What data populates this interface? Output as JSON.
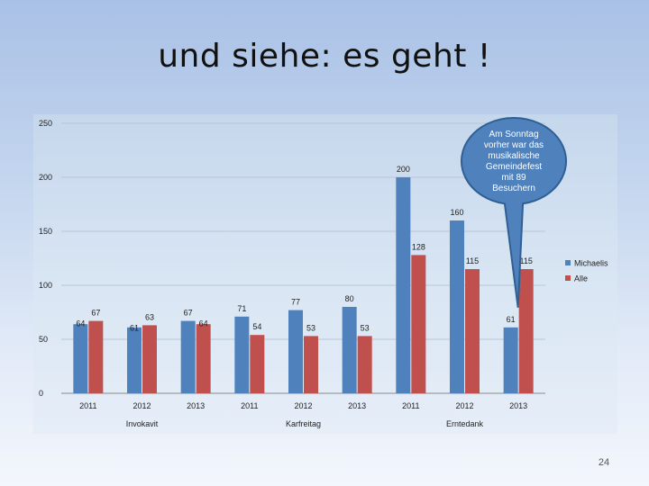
{
  "slide": {
    "title": "und siehe: es geht !",
    "page_number": "24"
  },
  "chart_data": {
    "type": "bar",
    "ylim": [
      0,
      250
    ],
    "yticks": [
      0,
      50,
      100,
      150,
      200,
      250
    ],
    "groups": [
      "Invokavit",
      "Karfreitag",
      "Erntedank"
    ],
    "categories": [
      "2011",
      "2012",
      "2013",
      "2011",
      "2012",
      "2013",
      "2011",
      "2012",
      "2013"
    ],
    "category_groups": [
      0,
      0,
      0,
      1,
      1,
      1,
      2,
      2,
      2
    ],
    "series": [
      {
        "name": "Michaelis",
        "color": "#4f81bd",
        "values": [
          64,
          61,
          67,
          71,
          77,
          80,
          200,
          160,
          61
        ]
      },
      {
        "name": "Alle",
        "color": "#c0504d",
        "values": [
          67,
          63,
          64,
          54,
          53,
          53,
          128,
          115,
          115
        ]
      }
    ],
    "legend_position": "right",
    "annotation": {
      "text_lines": [
        "Am Sonntag",
        "vorher war das",
        "musikalische",
        "Gemeindefest",
        "mit 89",
        "Besuchern"
      ],
      "points_to": "Erntedank 2013"
    }
  }
}
